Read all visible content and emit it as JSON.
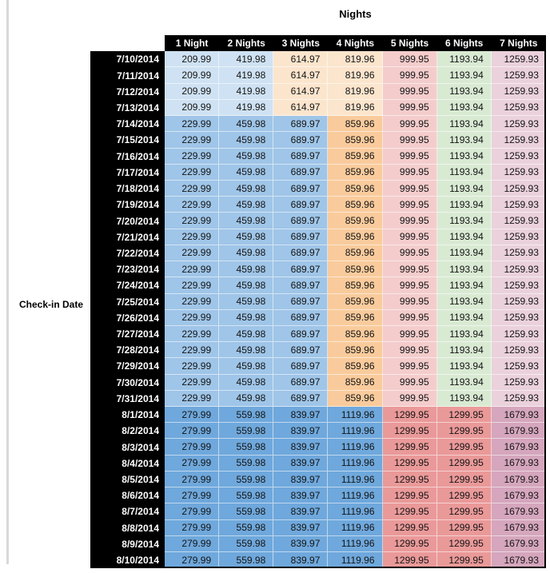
{
  "window": {
    "left_edge_bar_color": "#d9d9d9"
  },
  "chart_data": {
    "type": "table",
    "title": "Nights",
    "row_axis_label": "Check-in Date",
    "columns": [
      "1 Night",
      "2 Nights",
      "3 Nights",
      "4 Nights",
      "5 Nights",
      "6 Nights",
      "7 Nights"
    ],
    "colors": {
      "header_bg": "#000000",
      "header_text": "#ffffff",
      "schemes": {
        "early_july": [
          "#CFE2F3",
          "#CFE2F3",
          "#FCE5CD",
          "#FCE5CD",
          "#F4CCCC",
          "#D9EAD3",
          "#EAD1DC"
        ],
        "mid_july": [
          "#9FC5E8",
          "#9FC5E8",
          "#9FC5E8",
          "#F9CB9C",
          "#F4CCCC",
          "#D9EAD3",
          "#EAD1DC"
        ],
        "august": [
          "#6FA8DC",
          "#6FA8DC",
          "#6FA8DC",
          "#6FA8DC",
          "#EA9999",
          "#EA9999",
          "#D5A6BD"
        ]
      }
    },
    "rows": [
      {
        "date": "7/10/2014",
        "scheme": "early_july",
        "values": [
          "209.99",
          "419.98",
          "614.97",
          "819.96",
          "999.95",
          "1193.94",
          "1259.93"
        ]
      },
      {
        "date": "7/11/2014",
        "scheme": "early_july",
        "values": [
          "209.99",
          "419.98",
          "614.97",
          "819.96",
          "999.95",
          "1193.94",
          "1259.93"
        ]
      },
      {
        "date": "7/12/2014",
        "scheme": "early_july",
        "values": [
          "209.99",
          "419.98",
          "614.97",
          "819.96",
          "999.95",
          "1193.94",
          "1259.93"
        ]
      },
      {
        "date": "7/13/2014",
        "scheme": "early_july",
        "values": [
          "209.99",
          "419.98",
          "614.97",
          "819.96",
          "999.95",
          "1193.94",
          "1259.93"
        ]
      },
      {
        "date": "7/14/2014",
        "scheme": "mid_july",
        "values": [
          "229.99",
          "459.98",
          "689.97",
          "859.96",
          "999.95",
          "1193.94",
          "1259.93"
        ]
      },
      {
        "date": "7/15/2014",
        "scheme": "mid_july",
        "values": [
          "229.99",
          "459.98",
          "689.97",
          "859.96",
          "999.95",
          "1193.94",
          "1259.93"
        ]
      },
      {
        "date": "7/16/2014",
        "scheme": "mid_july",
        "values": [
          "229.99",
          "459.98",
          "689.97",
          "859.96",
          "999.95",
          "1193.94",
          "1259.93"
        ]
      },
      {
        "date": "7/17/2014",
        "scheme": "mid_july",
        "values": [
          "229.99",
          "459.98",
          "689.97",
          "859.96",
          "999.95",
          "1193.94",
          "1259.93"
        ]
      },
      {
        "date": "7/18/2014",
        "scheme": "mid_july",
        "values": [
          "229.99",
          "459.98",
          "689.97",
          "859.96",
          "999.95",
          "1193.94",
          "1259.93"
        ]
      },
      {
        "date": "7/19/2014",
        "scheme": "mid_july",
        "values": [
          "229.99",
          "459.98",
          "689.97",
          "859.96",
          "999.95",
          "1193.94",
          "1259.93"
        ]
      },
      {
        "date": "7/20/2014",
        "scheme": "mid_july",
        "values": [
          "229.99",
          "459.98",
          "689.97",
          "859.96",
          "999.95",
          "1193.94",
          "1259.93"
        ]
      },
      {
        "date": "7/21/2014",
        "scheme": "mid_july",
        "values": [
          "229.99",
          "459.98",
          "689.97",
          "859.96",
          "999.95",
          "1193.94",
          "1259.93"
        ]
      },
      {
        "date": "7/22/2014",
        "scheme": "mid_july",
        "values": [
          "229.99",
          "459.98",
          "689.97",
          "859.96",
          "999.95",
          "1193.94",
          "1259.93"
        ]
      },
      {
        "date": "7/23/2014",
        "scheme": "mid_july",
        "values": [
          "229.99",
          "459.98",
          "689.97",
          "859.96",
          "999.95",
          "1193.94",
          "1259.93"
        ]
      },
      {
        "date": "7/24/2014",
        "scheme": "mid_july",
        "values": [
          "229.99",
          "459.98",
          "689.97",
          "859.96",
          "999.95",
          "1193.94",
          "1259.93"
        ]
      },
      {
        "date": "7/25/2014",
        "scheme": "mid_july",
        "values": [
          "229.99",
          "459.98",
          "689.97",
          "859.96",
          "999.95",
          "1193.94",
          "1259.93"
        ]
      },
      {
        "date": "7/26/2014",
        "scheme": "mid_july",
        "values": [
          "229.99",
          "459.98",
          "689.97",
          "859.96",
          "999.95",
          "1193.94",
          "1259.93"
        ]
      },
      {
        "date": "7/27/2014",
        "scheme": "mid_july",
        "values": [
          "229.99",
          "459.98",
          "689.97",
          "859.96",
          "999.95",
          "1193.94",
          "1259.93"
        ]
      },
      {
        "date": "7/28/2014",
        "scheme": "mid_july",
        "values": [
          "229.99",
          "459.98",
          "689.97",
          "859.96",
          "999.95",
          "1193.94",
          "1259.93"
        ]
      },
      {
        "date": "7/29/2014",
        "scheme": "mid_july",
        "values": [
          "229.99",
          "459.98",
          "689.97",
          "859.96",
          "999.95",
          "1193.94",
          "1259.93"
        ]
      },
      {
        "date": "7/30/2014",
        "scheme": "mid_july",
        "values": [
          "229.99",
          "459.98",
          "689.97",
          "859.96",
          "999.95",
          "1193.94",
          "1259.93"
        ]
      },
      {
        "date": "7/31/2014",
        "scheme": "mid_july",
        "values": [
          "229.99",
          "459.98",
          "689.97",
          "859.96",
          "999.95",
          "1193.94",
          "1259.93"
        ]
      },
      {
        "date": "8/1/2014",
        "scheme": "august",
        "values": [
          "279.99",
          "559.98",
          "839.97",
          "1119.96",
          "1299.95",
          "1299.95",
          "1679.93"
        ]
      },
      {
        "date": "8/2/2014",
        "scheme": "august",
        "values": [
          "279.99",
          "559.98",
          "839.97",
          "1119.96",
          "1299.95",
          "1299.95",
          "1679.93"
        ]
      },
      {
        "date": "8/3/2014",
        "scheme": "august",
        "values": [
          "279.99",
          "559.98",
          "839.97",
          "1119.96",
          "1299.95",
          "1299.95",
          "1679.93"
        ]
      },
      {
        "date": "8/4/2014",
        "scheme": "august",
        "values": [
          "279.99",
          "559.98",
          "839.97",
          "1119.96",
          "1299.95",
          "1299.95",
          "1679.93"
        ]
      },
      {
        "date": "8/5/2014",
        "scheme": "august",
        "values": [
          "279.99",
          "559.98",
          "839.97",
          "1119.96",
          "1299.95",
          "1299.95",
          "1679.93"
        ]
      },
      {
        "date": "8/6/2014",
        "scheme": "august",
        "values": [
          "279.99",
          "559.98",
          "839.97",
          "1119.96",
          "1299.95",
          "1299.95",
          "1679.93"
        ]
      },
      {
        "date": "8/7/2014",
        "scheme": "august",
        "values": [
          "279.99",
          "559.98",
          "839.97",
          "1119.96",
          "1299.95",
          "1299.95",
          "1679.93"
        ]
      },
      {
        "date": "8/8/2014",
        "scheme": "august",
        "values": [
          "279.99",
          "559.98",
          "839.97",
          "1119.96",
          "1299.95",
          "1299.95",
          "1679.93"
        ]
      },
      {
        "date": "8/9/2014",
        "scheme": "august",
        "values": [
          "279.99",
          "559.98",
          "839.97",
          "1119.96",
          "1299.95",
          "1299.95",
          "1679.93"
        ]
      },
      {
        "date": "8/10/2014",
        "scheme": "august",
        "values": [
          "279.99",
          "559.98",
          "839.97",
          "1119.96",
          "1299.95",
          "1299.95",
          "1679.93"
        ]
      }
    ]
  }
}
